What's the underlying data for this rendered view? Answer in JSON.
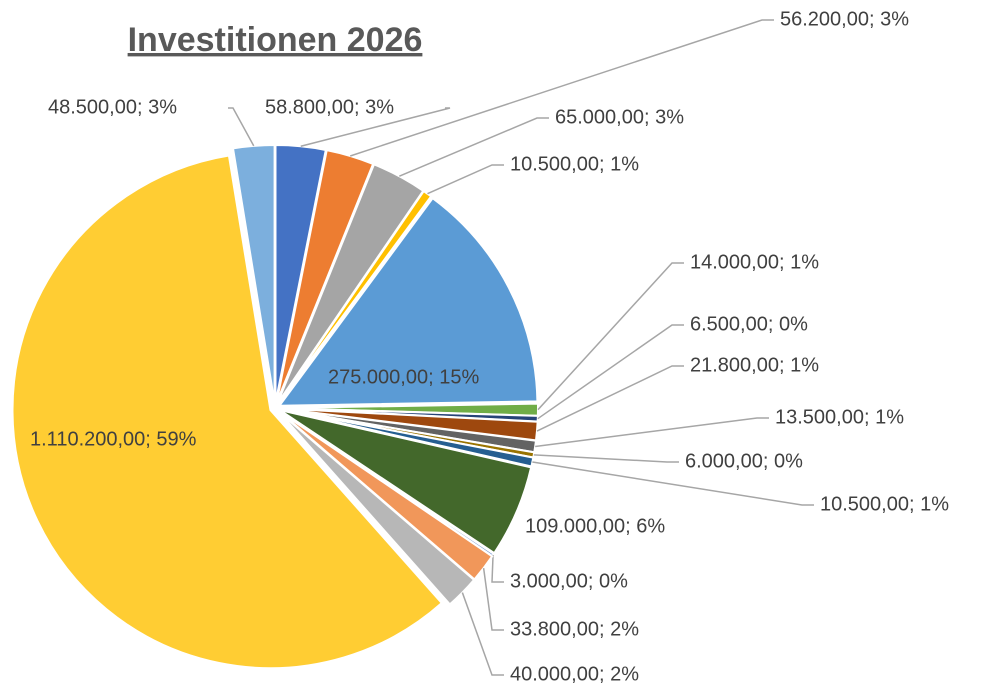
{
  "chart_data": {
    "type": "pie",
    "title": "Investitionen 2026",
    "values": [
      58800,
      56200,
      65000,
      10500,
      275000,
      14000,
      6500,
      21800,
      13500,
      6000,
      10500,
      109000,
      3000,
      33800,
      40000,
      1110200,
      48500
    ],
    "value_labels": [
      "58.800,00; 3%",
      "56.200,00; 3%",
      "65.000,00; 3%",
      "10.500,00; 1%",
      "275.000,00; 15%",
      "14.000,00; 1%",
      "6.500,00; 0%",
      "21.800,00; 1%",
      "13.500,00; 1%",
      "6.000,00; 0%",
      "10.500,00; 1%",
      "109.000,00; 6%",
      "3.000,00; 0%",
      "33.800,00; 2%",
      "40.000,00; 2%",
      "1.110.200,00; 59%",
      "48.500,00; 3%"
    ],
    "colors": [
      "#4472c4",
      "#ed7d31",
      "#a5a5a5",
      "#ffc000",
      "#5b9bd5",
      "#70ad47",
      "#264478",
      "#9e480e",
      "#636363",
      "#997300",
      "#255e91",
      "#43682b",
      "#698ed0",
      "#f1975a",
      "#b7b7b7",
      "#ffcd33",
      "#7cafdd"
    ]
  }
}
